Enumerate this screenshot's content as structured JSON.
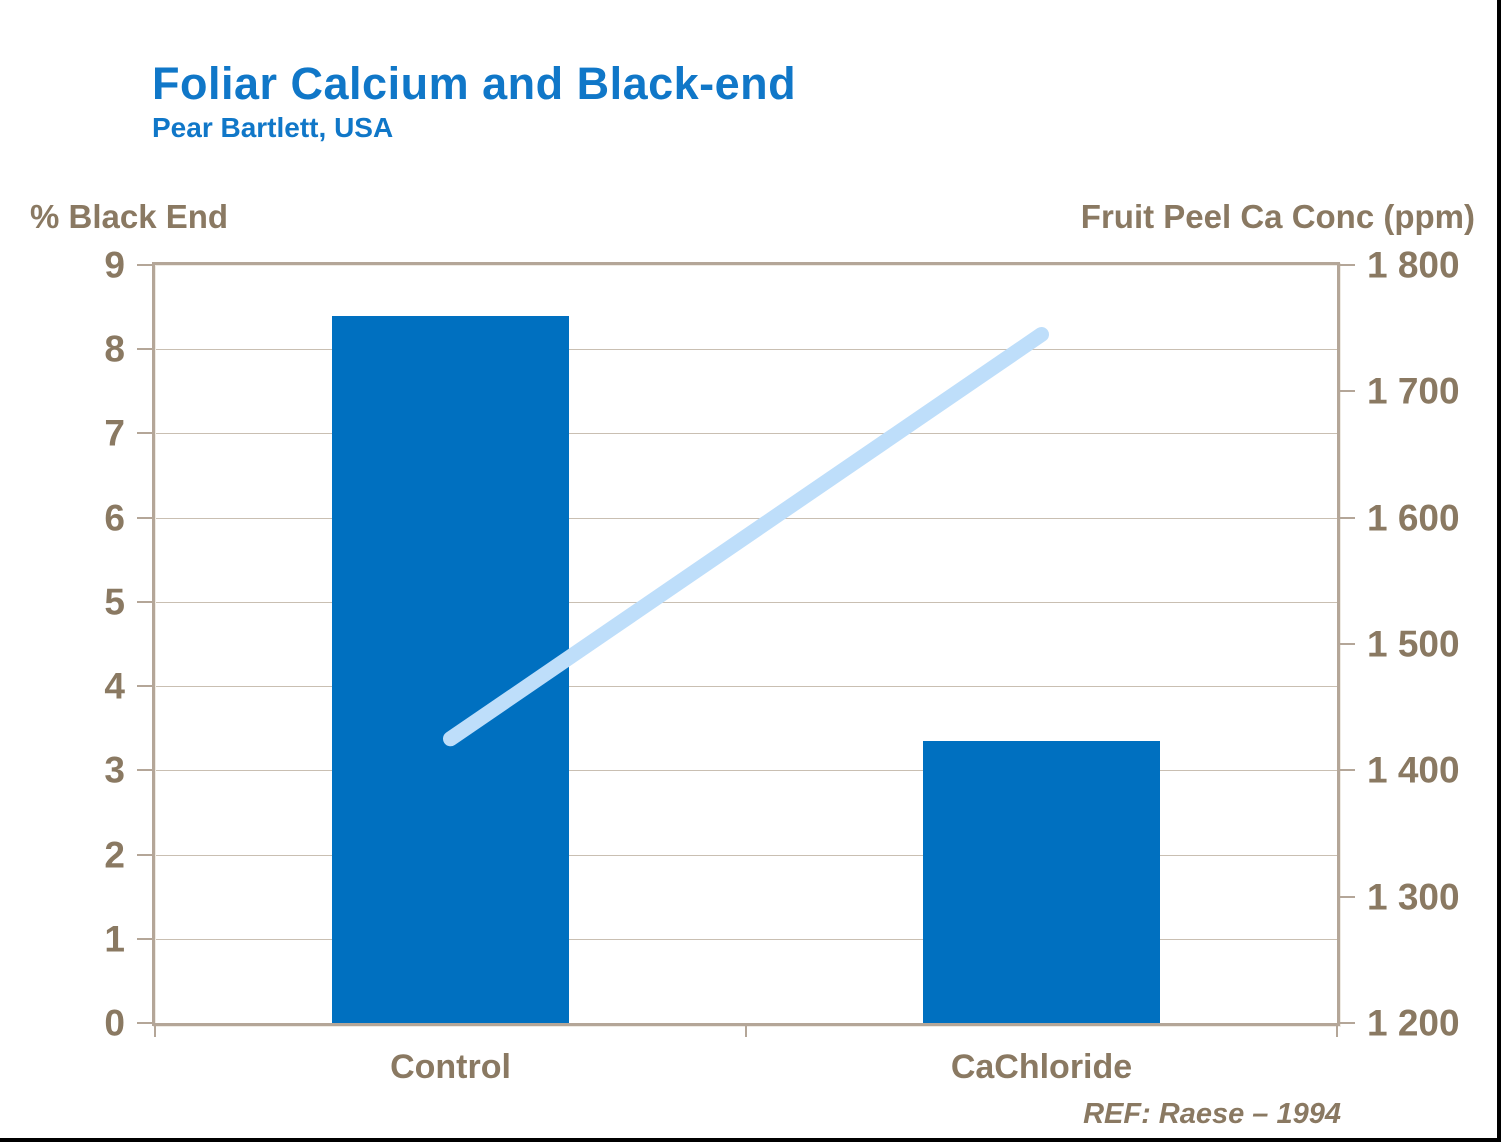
{
  "header": {
    "title": "Foliar Calcium and Black-end",
    "subtitle": "Pear Bartlett, USA"
  },
  "footer": {
    "ref": "REF: Raese – 1994"
  },
  "colors": {
    "title_blue": "#1077c8",
    "bar_blue": "#0070c0",
    "line_light_blue": "#bedefa",
    "label_brown": "#8a7962",
    "frame_tan": "#b4a698",
    "gridline": "#c9bfb2"
  },
  "chart_data": {
    "type": "bar",
    "categories": [
      "Control",
      "CaChloride"
    ],
    "series": [
      {
        "name": "% Black End",
        "type": "bar",
        "values": [
          8.4,
          3.35
        ],
        "axis": "left",
        "color": "#0070c0"
      },
      {
        "name": "Fruit Peel Ca Conc (ppm)",
        "type": "line",
        "values": [
          1425,
          1745
        ],
        "axis": "right",
        "color": "#bedefa"
      }
    ],
    "title": "Foliar Calcium and Black-end",
    "subtitle": "Pear Bartlett, USA",
    "left_axis": {
      "title": "% Black End",
      "min": 0,
      "max": 9,
      "step": 1,
      "tick_labels": [
        "0",
        "1",
        "2",
        "3",
        "4",
        "5",
        "6",
        "7",
        "8",
        "9"
      ]
    },
    "right_axis": {
      "title": "Fruit Peel Ca Conc (ppm)",
      "min": 1200,
      "max": 1800,
      "step": 100,
      "tick_labels": [
        "1 200",
        "1 300",
        "1 400",
        "1 500",
        "1 600",
        "1 700",
        "1 800"
      ]
    },
    "grid": "horizontal-at-left-axis-integers",
    "legend": "none",
    "annotation": "REF: Raese – 1994"
  }
}
